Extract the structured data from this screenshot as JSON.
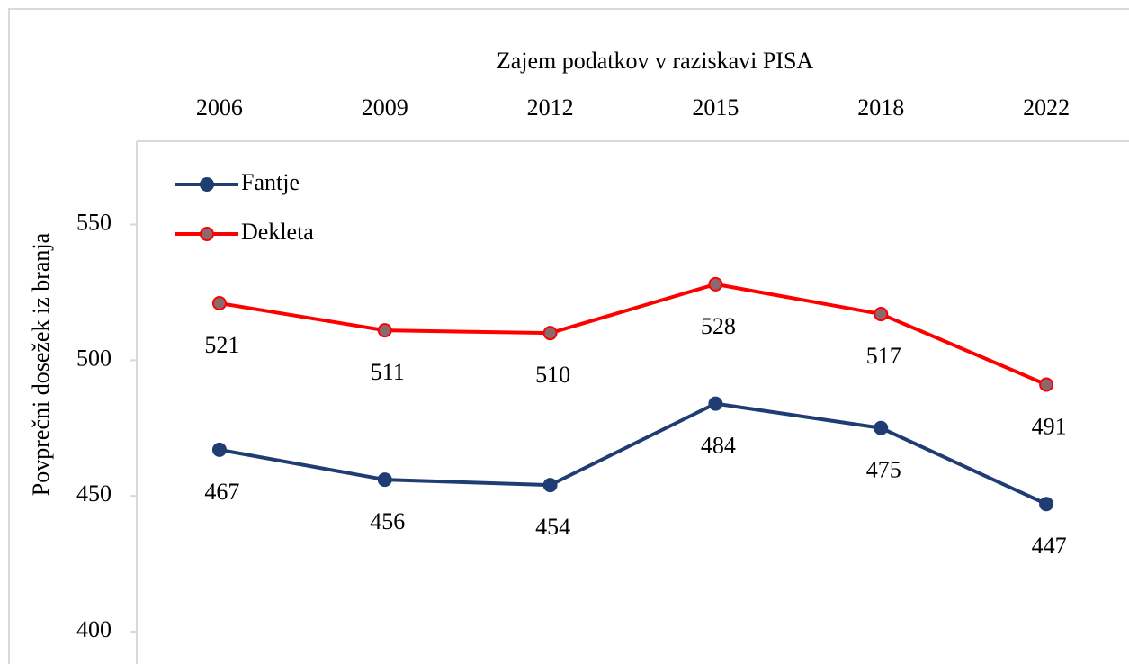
{
  "chart_data": {
    "type": "line",
    "title": "Zajem podatkov v raziskavi PISA",
    "y_label": "Povprečni dosežek iz branja",
    "categories": [
      "2006",
      "2009",
      "2012",
      "2015",
      "2018",
      "2022"
    ],
    "series": [
      {
        "name": "Fantje",
        "color": "#1f3d73",
        "marker_color": "#1f3d73",
        "values": [
          467,
          456,
          454,
          484,
          475,
          447
        ]
      },
      {
        "name": "Dekleta",
        "color": "#ff0000",
        "marker_color": "#8a6a6e",
        "values": [
          521,
          511,
          510,
          528,
          517,
          491
        ]
      }
    ],
    "ylim": [
      400,
      580
    ],
    "yticks": [
      400,
      450,
      500,
      550
    ],
    "legend": "top-left"
  }
}
